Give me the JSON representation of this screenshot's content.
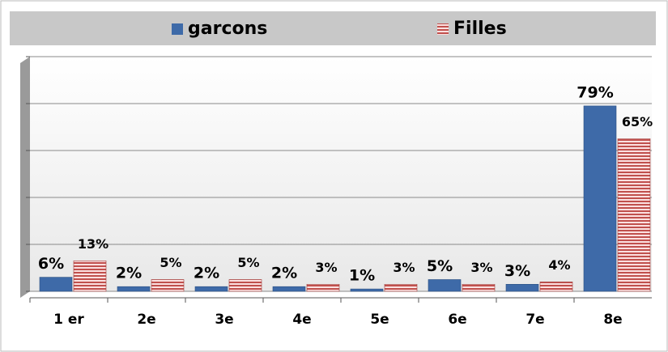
{
  "chart_data": {
    "type": "bar",
    "categories": [
      "1 er",
      "2e",
      "3e",
      "4e",
      "5e",
      "6e",
      "7e",
      "8e"
    ],
    "series": [
      {
        "name": "garcons",
        "color": "#3e6aa8",
        "values": [
          6,
          2,
          2,
          2,
          1,
          5,
          3,
          79
        ],
        "value_labels": [
          "6%",
          "2%",
          "2%",
          "2%",
          "1%",
          "5%",
          "3%",
          "79%"
        ]
      },
      {
        "name": "Filles",
        "color": "#c0504d",
        "values": [
          13,
          5,
          5,
          3,
          3,
          3,
          4,
          65
        ],
        "value_labels": [
          "13%",
          "5%",
          "5%",
          "3%",
          "3%",
          "3%",
          "4%",
          "65%"
        ]
      }
    ],
    "ylim": [
      0,
      100
    ],
    "yticks": [
      0,
      20,
      40,
      60,
      80,
      100
    ],
    "grid": true,
    "legend": "top"
  }
}
